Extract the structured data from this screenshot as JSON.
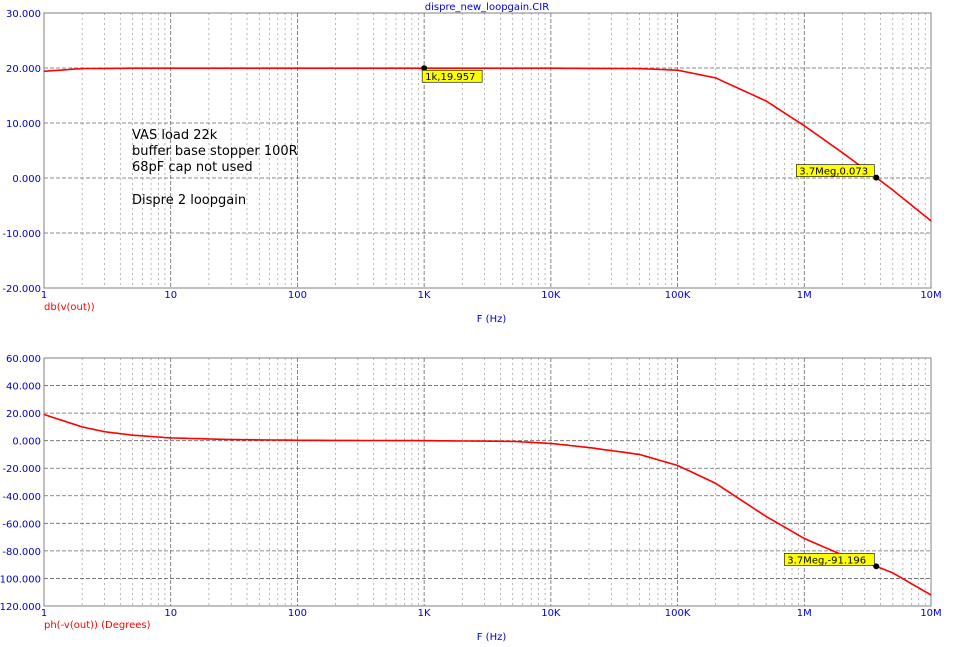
{
  "title": "dispre_new_loopgain.CIR",
  "colors": {
    "axis_text": "#0000cc",
    "trace": "#ff0000",
    "grid": "#999999",
    "cursor_bg": "#ffff00"
  },
  "annotations": {
    "lines": [
      "VAS load 22k",
      "buffer base stopper 100R",
      "68pF cap not used"
    ],
    "extra": "Dispre 2 loopgain"
  },
  "chart_data": [
    {
      "type": "line",
      "xscale": "log",
      "xlabel": "F (Hz)",
      "ylabel": "db(v(out))",
      "xlim": [
        1,
        10000000
      ],
      "ylim": [
        -20,
        30
      ],
      "x_tick_labels": [
        "1",
        "10",
        "100",
        "1K",
        "10K",
        "100K",
        "1M",
        "10M"
      ],
      "y_tick_labels": [
        "30.000",
        "20.000",
        "10.000",
        "0.000",
        "-10.000",
        "-20.000"
      ],
      "grid": true,
      "series": [
        {
          "x": [
            1,
            2,
            5,
            10,
            100,
            1000,
            10000,
            50000,
            100000,
            200000,
            500000,
            1000000,
            2000000,
            3700000,
            5000000,
            10000000
          ],
          "values": [
            19.4,
            19.9,
            19.96,
            19.96,
            19.96,
            19.96,
            19.96,
            19.9,
            19.6,
            18.2,
            14.0,
            9.5,
            4.6,
            0.07,
            -2.2,
            -7.8
          ]
        }
      ],
      "cursors": [
        {
          "x": 1000,
          "y": 19.957,
          "label": "1k,19.957"
        },
        {
          "x": 3700000,
          "y": 0.073,
          "label": "3.7Meg,0.073"
        }
      ]
    },
    {
      "type": "line",
      "xscale": "log",
      "xlabel": "F (Hz)",
      "ylabel": "ph(-v(out)) (Degrees)",
      "xlim": [
        1,
        10000000
      ],
      "ylim": [
        -120,
        60
      ],
      "x_tick_labels": [
        "1",
        "10",
        "100",
        "1K",
        "10K",
        "100K",
        "1M",
        "10M"
      ],
      "y_tick_labels": [
        "60.000",
        "40.000",
        "20.000",
        "0.000",
        "-20.000",
        "-40.000",
        "-60.000",
        "-80.000",
        "-100.000",
        "-120.000"
      ],
      "grid": true,
      "series": [
        {
          "x": [
            1,
            2,
            3,
            5,
            10,
            30,
            100,
            1000,
            5000,
            10000,
            20000,
            50000,
            100000,
            200000,
            500000,
            1000000,
            2000000,
            3700000,
            5000000,
            10000000
          ],
          "values": [
            19.0,
            10.0,
            6.5,
            4.0,
            2.0,
            0.8,
            0.3,
            0.0,
            -0.5,
            -2.0,
            -5.0,
            -10.0,
            -18.0,
            -31.0,
            -55.0,
            -71.0,
            -83.0,
            -91.196,
            -96.0,
            -112.0
          ]
        }
      ],
      "cursors": [
        {
          "x": 3700000,
          "y": -91.196,
          "label": "3.7Meg,-91.196"
        }
      ]
    }
  ]
}
